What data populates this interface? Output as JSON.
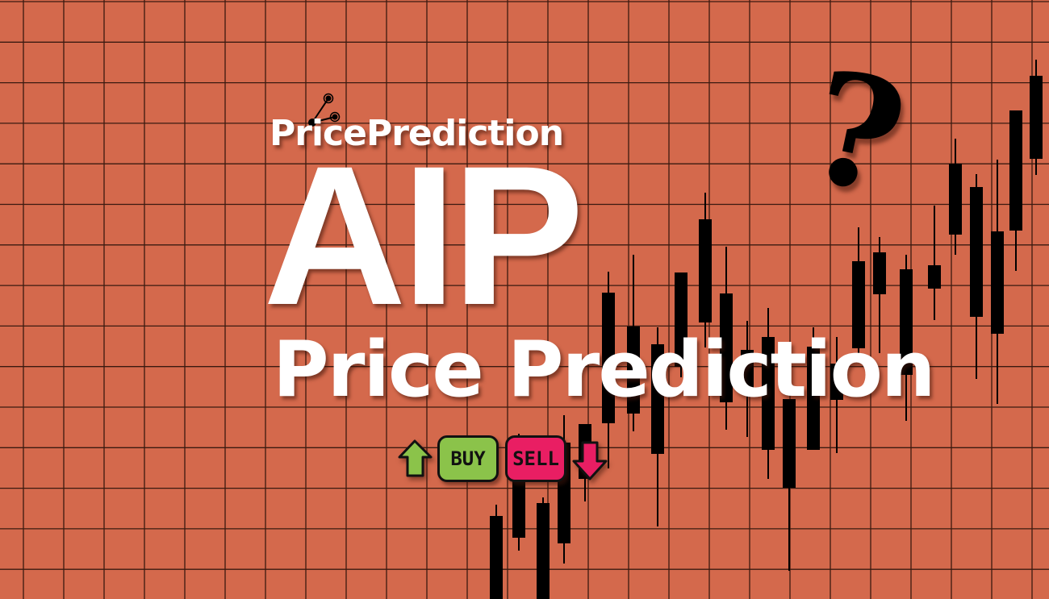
{
  "brand": {
    "logo_text": "PricePrediction",
    "icon": "network-nodes-icon"
  },
  "headline": {
    "ticker": "AIP",
    "subtitle": "Price Prediction"
  },
  "signals": {
    "buy_label": "BUY",
    "sell_label": "SELL",
    "buy_icon": "arrow-up-icon",
    "sell_icon": "arrow-down-icon",
    "buy_color": "#8BC34A",
    "sell_color": "#E91E63"
  },
  "decoration": {
    "question_mark": "?",
    "background_color": "#D4694C",
    "grid_color": "#3a1a10",
    "candle_color": "#000000"
  }
}
